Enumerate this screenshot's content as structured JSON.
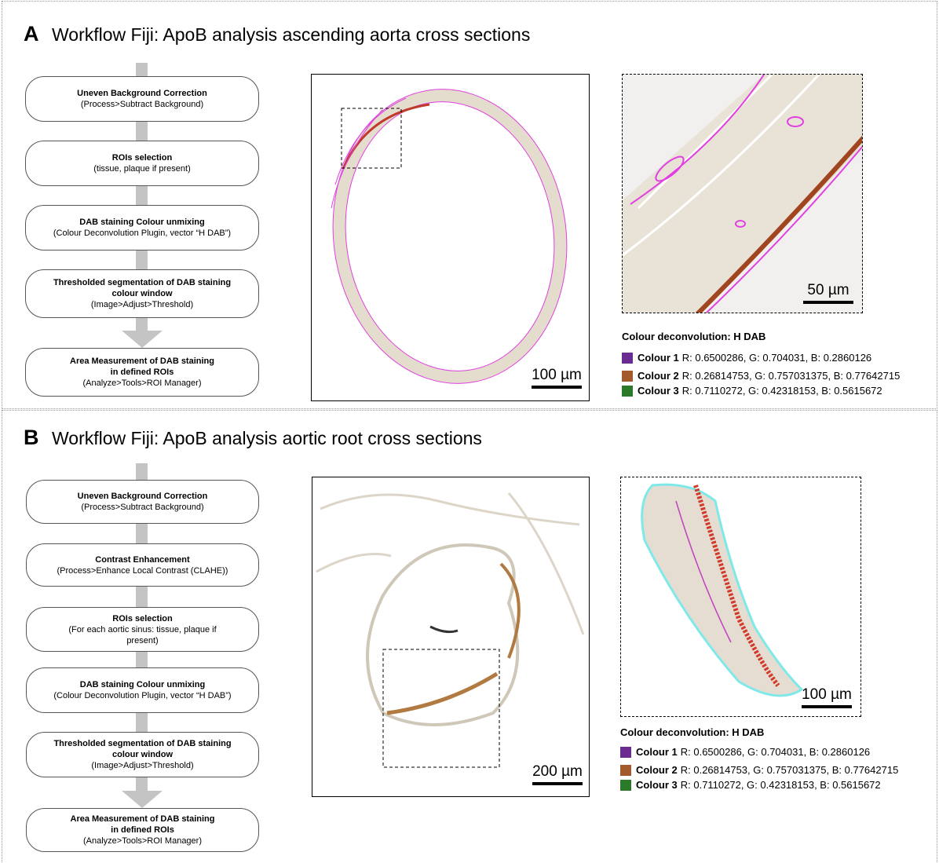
{
  "panels": [
    {
      "letter": "A",
      "title": "Workflow Fiji: ApoB analysis ascending aorta cross sections",
      "steps": [
        {
          "bold": [
            "Uneven Background Correction"
          ],
          "text": [
            "(Process>Subtract Background)"
          ]
        },
        {
          "bold": [
            "ROIs selection"
          ],
          "text": [
            "(tissue, plaque if present)"
          ]
        },
        {
          "bold": [
            "DAB staining Colour unmixing"
          ],
          "text": [
            "(Colour Deconvolution Plugin, vector “H DAB”)"
          ]
        },
        {
          "bold": [
            "Thresholded segmentation of DAB staining",
            "colour window"
          ],
          "text": [
            "(Image>Adjust>Threshold)"
          ]
        },
        {
          "bold": [
            "Area Measurement  of DAB staining",
            "in defined ROIs"
          ],
          "text": [
            "(Analyze>Tools>ROI Manager)"
          ]
        }
      ],
      "scale_main": "100 µm",
      "scale_zoom": "50 µm",
      "legend": {
        "title": "Colour  deconvolution: H DAB",
        "items": [
          {
            "label": "Colour 1",
            "text": "R: 0.6500286, G: 0.704031, B: 0.2860126",
            "color": "#6a2c91"
          },
          {
            "label": "Colour 2",
            "text": "R: 0.26814753, G: 0.757031375, B: 0.77642715",
            "color": "#a35a2c"
          },
          {
            "label": "Colour 3",
            "text": "R: 0.7110272, G: 0.42318153, B: 0.5615672",
            "color": "#2a7a2a"
          }
        ]
      }
    },
    {
      "letter": "B",
      "title": "Workflow Fiji: ApoB analysis aortic root cross sections",
      "steps": [
        {
          "bold": [
            "Uneven Background Correction"
          ],
          "text": [
            "(Process>Subtract Background)"
          ]
        },
        {
          "bold": [
            "Contrast Enhancement"
          ],
          "text": [
            "(Process>Enhance Local Contrast (CLAHE))"
          ]
        },
        {
          "bold": [
            "ROIs selection"
          ],
          "text": [
            "(For each aortic sinus: tissue, plaque if",
            "present)"
          ]
        },
        {
          "bold": [
            "DAB staining Colour unmixing"
          ],
          "text": [
            "(Colour Deconvolution Plugin, vector “H DAB”)"
          ]
        },
        {
          "bold": [
            "Thresholded segmentation of DAB staining",
            "colour window"
          ],
          "text": [
            "(Image>Adjust>Threshold)"
          ]
        },
        {
          "bold": [
            "Area Measurement  of DAB staining",
            "in defined ROIs"
          ],
          "text": [
            "(Analyze>Tools>ROI Manager)"
          ]
        }
      ],
      "scale_main": "200 µm",
      "scale_zoom": "100 µm",
      "legend": {
        "title": "Colour  deconvolution: H DAB",
        "items": [
          {
            "label": "Colour 1",
            "text": "R: 0.6500286, G: 0.704031, B: 0.2860126",
            "color": "#6a2c91"
          },
          {
            "label": "Colour 2",
            "text": "R: 0.26814753, G: 0.757031375, B: 0.77642715",
            "color": "#a35a2c"
          },
          {
            "label": "Colour 3",
            "text": "R: 0.7110272, G: 0.42318153, B: 0.5615672",
            "color": "#2a7a2a"
          }
        ]
      }
    }
  ]
}
